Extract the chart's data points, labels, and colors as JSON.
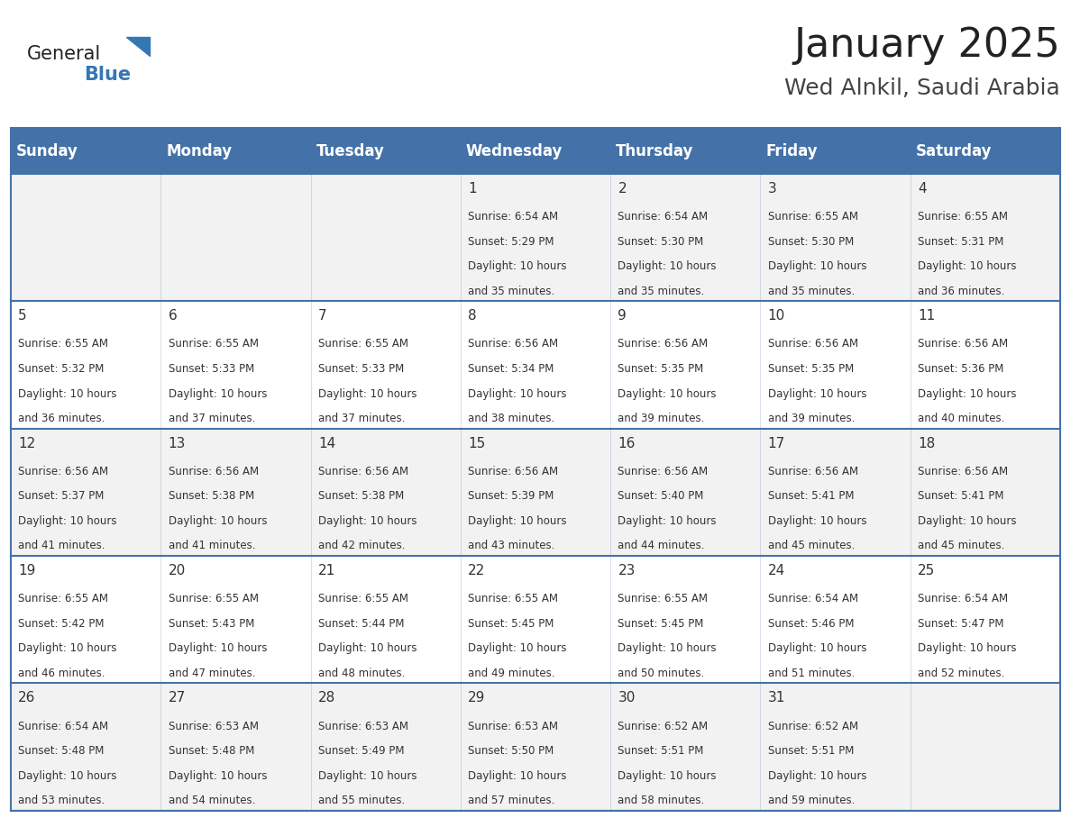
{
  "title": "January 2025",
  "subtitle": "Wed Alnkil, Saudi Arabia",
  "days_of_week": [
    "Sunday",
    "Monday",
    "Tuesday",
    "Wednesday",
    "Thursday",
    "Friday",
    "Saturday"
  ],
  "header_bg": "#4472A8",
  "header_text": "#FFFFFF",
  "cell_bg_light": "#F2F2F2",
  "cell_bg_white": "#FFFFFF",
  "cell_text": "#333333",
  "grid_color": "#4472A8",
  "title_color": "#222222",
  "subtitle_color": "#444444",
  "logo_general_color": "#222222",
  "logo_blue_color": "#3577B5",
  "weeks": [
    [
      {
        "day": null,
        "sunrise": null,
        "sunset": null,
        "daylight": null
      },
      {
        "day": null,
        "sunrise": null,
        "sunset": null,
        "daylight": null
      },
      {
        "day": null,
        "sunrise": null,
        "sunset": null,
        "daylight": null
      },
      {
        "day": 1,
        "sunrise": "6:54 AM",
        "sunset": "5:29 PM",
        "daylight": "10 hours and 35 minutes."
      },
      {
        "day": 2,
        "sunrise": "6:54 AM",
        "sunset": "5:30 PM",
        "daylight": "10 hours and 35 minutes."
      },
      {
        "day": 3,
        "sunrise": "6:55 AM",
        "sunset": "5:30 PM",
        "daylight": "10 hours and 35 minutes."
      },
      {
        "day": 4,
        "sunrise": "6:55 AM",
        "sunset": "5:31 PM",
        "daylight": "10 hours and 36 minutes."
      }
    ],
    [
      {
        "day": 5,
        "sunrise": "6:55 AM",
        "sunset": "5:32 PM",
        "daylight": "10 hours and 36 minutes."
      },
      {
        "day": 6,
        "sunrise": "6:55 AM",
        "sunset": "5:33 PM",
        "daylight": "10 hours and 37 minutes."
      },
      {
        "day": 7,
        "sunrise": "6:55 AM",
        "sunset": "5:33 PM",
        "daylight": "10 hours and 37 minutes."
      },
      {
        "day": 8,
        "sunrise": "6:56 AM",
        "sunset": "5:34 PM",
        "daylight": "10 hours and 38 minutes."
      },
      {
        "day": 9,
        "sunrise": "6:56 AM",
        "sunset": "5:35 PM",
        "daylight": "10 hours and 39 minutes."
      },
      {
        "day": 10,
        "sunrise": "6:56 AM",
        "sunset": "5:35 PM",
        "daylight": "10 hours and 39 minutes."
      },
      {
        "day": 11,
        "sunrise": "6:56 AM",
        "sunset": "5:36 PM",
        "daylight": "10 hours and 40 minutes."
      }
    ],
    [
      {
        "day": 12,
        "sunrise": "6:56 AM",
        "sunset": "5:37 PM",
        "daylight": "10 hours and 41 minutes."
      },
      {
        "day": 13,
        "sunrise": "6:56 AM",
        "sunset": "5:38 PM",
        "daylight": "10 hours and 41 minutes."
      },
      {
        "day": 14,
        "sunrise": "6:56 AM",
        "sunset": "5:38 PM",
        "daylight": "10 hours and 42 minutes."
      },
      {
        "day": 15,
        "sunrise": "6:56 AM",
        "sunset": "5:39 PM",
        "daylight": "10 hours and 43 minutes."
      },
      {
        "day": 16,
        "sunrise": "6:56 AM",
        "sunset": "5:40 PM",
        "daylight": "10 hours and 44 minutes."
      },
      {
        "day": 17,
        "sunrise": "6:56 AM",
        "sunset": "5:41 PM",
        "daylight": "10 hours and 45 minutes."
      },
      {
        "day": 18,
        "sunrise": "6:56 AM",
        "sunset": "5:41 PM",
        "daylight": "10 hours and 45 minutes."
      }
    ],
    [
      {
        "day": 19,
        "sunrise": "6:55 AM",
        "sunset": "5:42 PM",
        "daylight": "10 hours and 46 minutes."
      },
      {
        "day": 20,
        "sunrise": "6:55 AM",
        "sunset": "5:43 PM",
        "daylight": "10 hours and 47 minutes."
      },
      {
        "day": 21,
        "sunrise": "6:55 AM",
        "sunset": "5:44 PM",
        "daylight": "10 hours and 48 minutes."
      },
      {
        "day": 22,
        "sunrise": "6:55 AM",
        "sunset": "5:45 PM",
        "daylight": "10 hours and 49 minutes."
      },
      {
        "day": 23,
        "sunrise": "6:55 AM",
        "sunset": "5:45 PM",
        "daylight": "10 hours and 50 minutes."
      },
      {
        "day": 24,
        "sunrise": "6:54 AM",
        "sunset": "5:46 PM",
        "daylight": "10 hours and 51 minutes."
      },
      {
        "day": 25,
        "sunrise": "6:54 AM",
        "sunset": "5:47 PM",
        "daylight": "10 hours and 52 minutes."
      }
    ],
    [
      {
        "day": 26,
        "sunrise": "6:54 AM",
        "sunset": "5:48 PM",
        "daylight": "10 hours and 53 minutes."
      },
      {
        "day": 27,
        "sunrise": "6:53 AM",
        "sunset": "5:48 PM",
        "daylight": "10 hours and 54 minutes."
      },
      {
        "day": 28,
        "sunrise": "6:53 AM",
        "sunset": "5:49 PM",
        "daylight": "10 hours and 55 minutes."
      },
      {
        "day": 29,
        "sunrise": "6:53 AM",
        "sunset": "5:50 PM",
        "daylight": "10 hours and 57 minutes."
      },
      {
        "day": 30,
        "sunrise": "6:52 AM",
        "sunset": "5:51 PM",
        "daylight": "10 hours and 58 minutes."
      },
      {
        "day": 31,
        "sunrise": "6:52 AM",
        "sunset": "5:51 PM",
        "daylight": "10 hours and 59 minutes."
      },
      {
        "day": null,
        "sunrise": null,
        "sunset": null,
        "daylight": null
      }
    ]
  ]
}
